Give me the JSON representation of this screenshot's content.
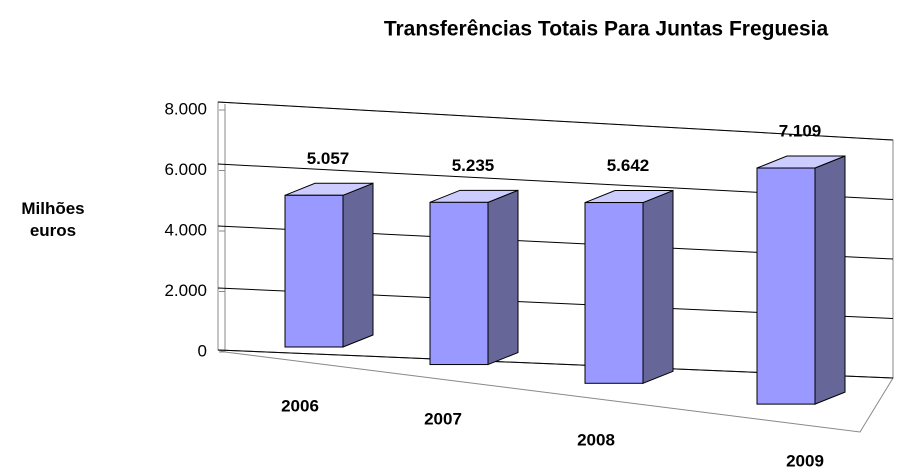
{
  "chart_data": {
    "type": "bar3d",
    "title": "Transferências Totais Para Juntas Freguesia",
    "ylabel": "Milhões euros",
    "categories": [
      "2006",
      "2007",
      "2008",
      "2009"
    ],
    "values": [
      5057,
      5235,
      5642,
      7109
    ],
    "value_labels": [
      "5.057",
      "5.235",
      "5.642",
      "7.109"
    ],
    "color": "#9999ff",
    "ylim": [
      0,
      8000
    ],
    "yticks": [
      0,
      {
        "value": 2000,
        "label": "2.000"
      },
      {
        "value": 4000,
        "label": "4.000"
      },
      {
        "value": 6000,
        "label": "6.000"
      },
      {
        "value": 8000,
        "label": "8.000"
      }
    ],
    "grid": true
  }
}
